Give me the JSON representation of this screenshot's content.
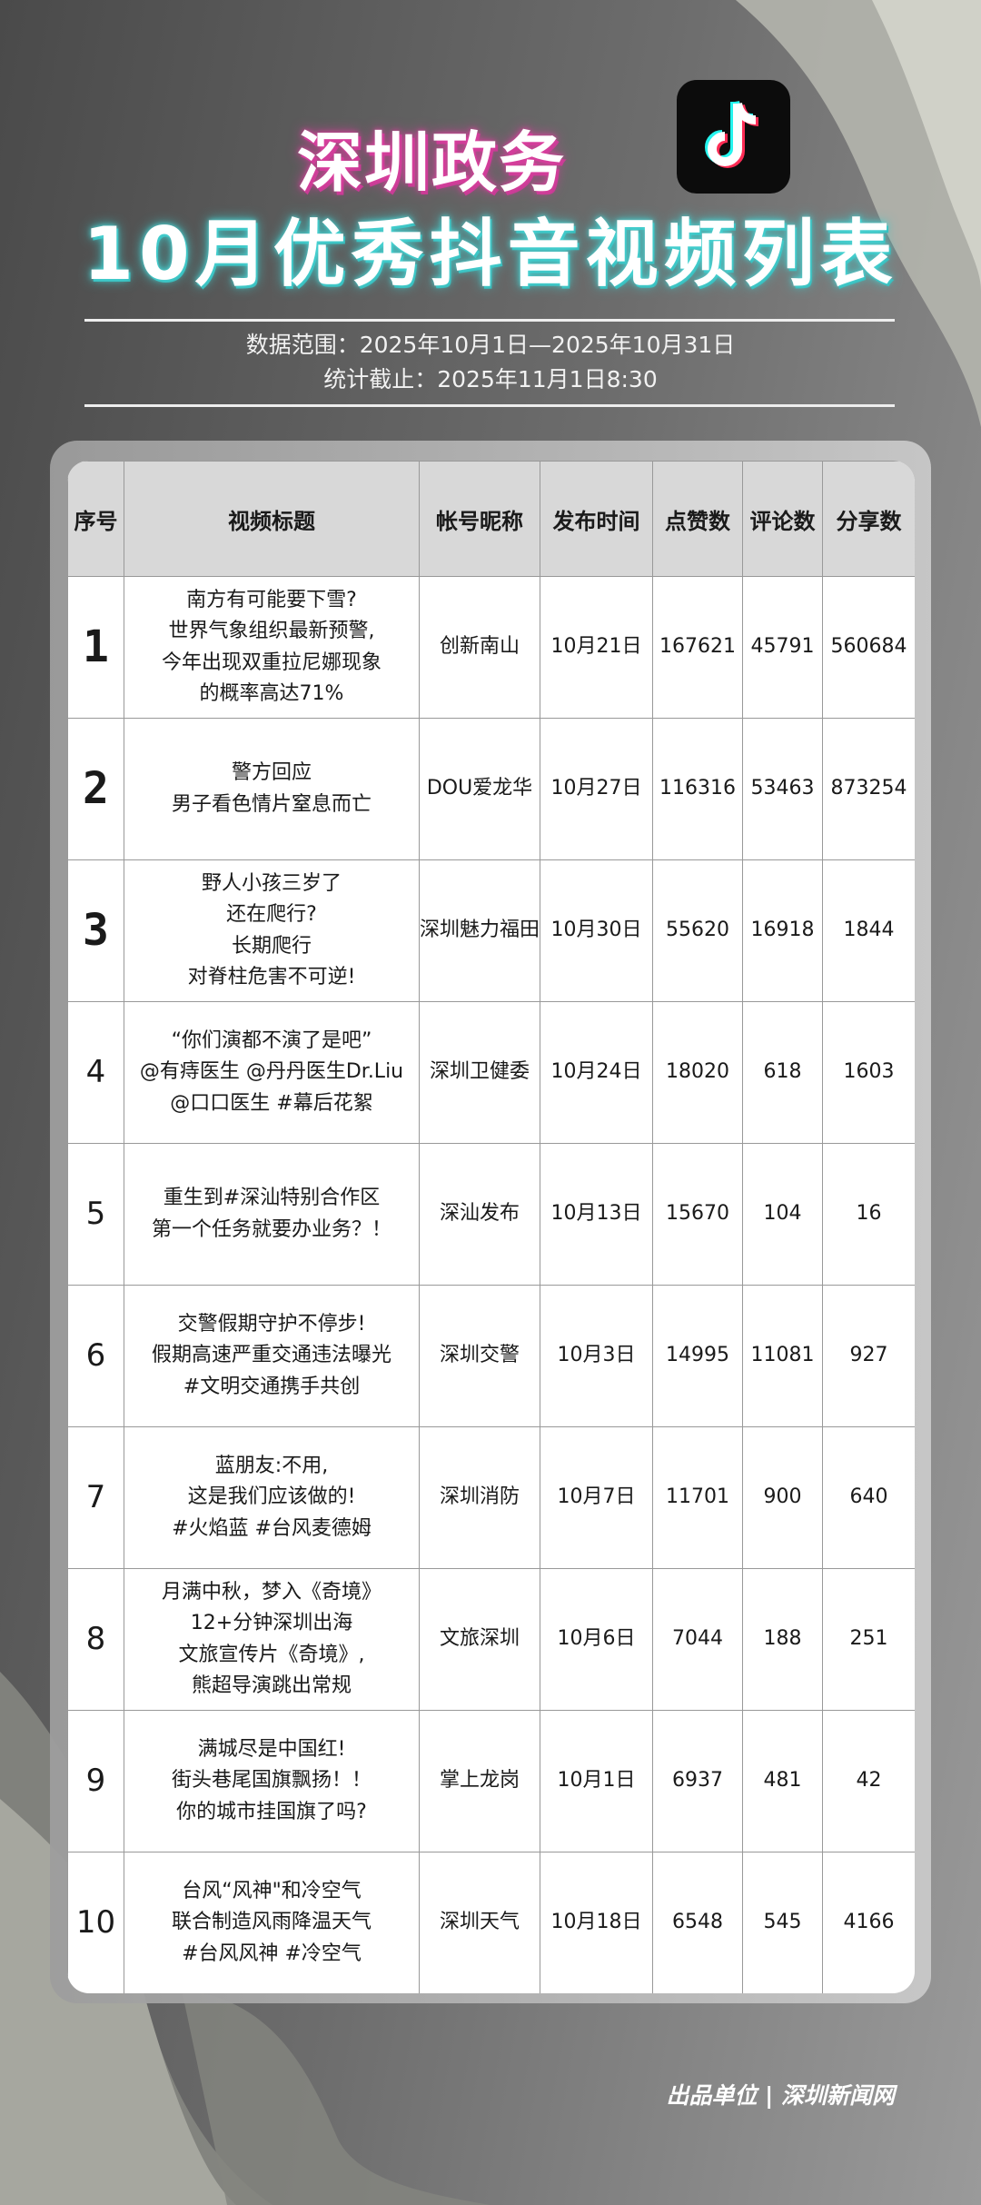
{
  "header": {
    "title_line1": "深圳政务",
    "title_line2": "10月优秀抖音视频列表",
    "logo_icon": "tiktok-icon",
    "data_range": "数据范围：2025年10月1日—2025年10月31日",
    "cutoff": "统计截止：2025年11月1日8:30"
  },
  "colors": {
    "title1_glow": "#d0409a",
    "title2_glow": "#3ccaca",
    "header_bg": "#d8d8d8"
  },
  "table": {
    "columns": [
      "序号",
      "视频标题",
      "帐号昵称",
      "发布时间",
      "点赞数",
      "评论数",
      "分享数"
    ],
    "rows": [
      {
        "rank": "1",
        "title": [
          "南方有可能要下雪?",
          "世界气象组织最新预警,",
          "今年出现双重拉尼娜现象",
          "的概率高达71%"
        ],
        "account": "创新南山",
        "date": "10月21日",
        "likes": "167621",
        "comments": "45791",
        "shares": "560684"
      },
      {
        "rank": "2",
        "title": [
          "警方回应",
          "男子看色情片窒息而亡"
        ],
        "account": "DOU爱龙华",
        "date": "10月27日",
        "likes": "116316",
        "comments": "53463",
        "shares": "873254"
      },
      {
        "rank": "3",
        "title": [
          "野人小孩三岁了",
          "还在爬行?",
          "长期爬行",
          "对脊柱危害不可逆!"
        ],
        "account": "深圳魅力福田",
        "date": "10月30日",
        "likes": "55620",
        "comments": "16918",
        "shares": "1844"
      },
      {
        "rank": "4",
        "title": [
          "“你们演都不演了是吧”",
          "@有痔医生 @丹丹医生Dr.Liu",
          "@口口医生 #幕后花絮"
        ],
        "account": "深圳卫健委",
        "date": "10月24日",
        "likes": "18020",
        "comments": "618",
        "shares": "1603"
      },
      {
        "rank": "5",
        "title": [
          "重生到#深汕特别合作区",
          "第一个任务就要办业务？！"
        ],
        "account": "深汕发布",
        "date": "10月13日",
        "likes": "15670",
        "comments": "104",
        "shares": "16"
      },
      {
        "rank": "6",
        "title": [
          "交警假期守护不停步!",
          "假期高速严重交通违法曝光",
          "#文明交通携手共创"
        ],
        "account": "深圳交警",
        "date": "10月3日",
        "likes": "14995",
        "comments": "11081",
        "shares": "927"
      },
      {
        "rank": "7",
        "title": [
          "蓝朋友:不用,",
          "这是我们应该做的!",
          "#火焰蓝 #台风麦德姆"
        ],
        "account": "深圳消防",
        "date": "10月7日",
        "likes": "11701",
        "comments": "900",
        "shares": "640"
      },
      {
        "rank": "8",
        "title": [
          "月满中秋，梦入《奇境》",
          "12+分钟深圳出海",
          "文旅宣传片《奇境》,",
          "熊超导演跳出常规"
        ],
        "account": "文旅深圳",
        "date": "10月6日",
        "likes": "7044",
        "comments": "188",
        "shares": "251"
      },
      {
        "rank": "9",
        "title": [
          "满城尽是中国红!",
          "街头巷尾国旗飘扬！！",
          "你的城市挂国旗了吗?"
        ],
        "account": "掌上龙岗",
        "date": "10月1日",
        "likes": "6937",
        "comments": "481",
        "shares": "42"
      },
      {
        "rank": "10",
        "title": [
          "台风“风神\"和冷空气",
          "联合制造风雨降温天气",
          "#台风风神 #冷空气"
        ],
        "account": "深圳天气",
        "date": "10月18日",
        "likes": "6548",
        "comments": "545",
        "shares": "4166"
      }
    ]
  },
  "footer": {
    "credit": "出品单位 | 深圳新闻网"
  }
}
